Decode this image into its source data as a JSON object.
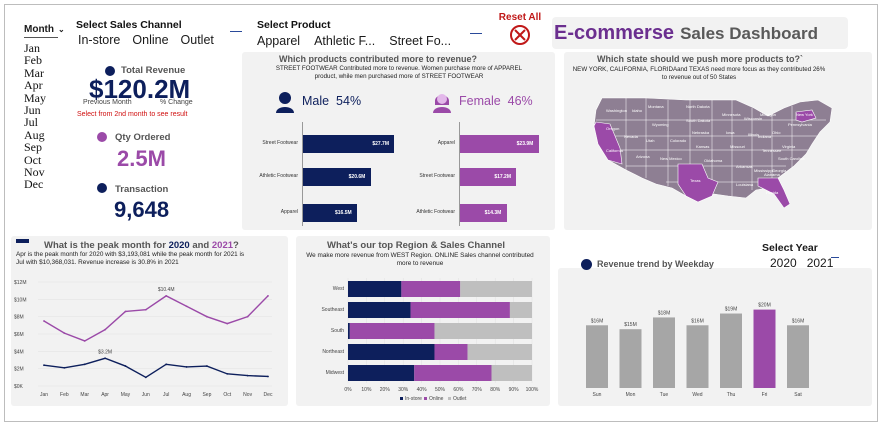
{
  "month_slicer": {
    "title": "Month",
    "months": [
      "Jan",
      "Feb",
      "Mar",
      "Apr",
      "May",
      "Jun",
      "Jul",
      "Aug",
      "Sep",
      "Oct",
      "Nov",
      "Dec"
    ]
  },
  "channel_slicer": {
    "title": "Select Sales Channel",
    "items": [
      "In-store",
      "Online",
      "Outlet"
    ]
  },
  "product_slicer": {
    "title": "Select Product",
    "items": [
      "Apparel",
      "Athletic F...",
      "Street Fo..."
    ]
  },
  "reset": {
    "label": "Reset All"
  },
  "title": {
    "main": "E-commerse",
    "sub": "Sales Dashboard"
  },
  "kpis": {
    "revenue_label": "Total Revenue",
    "revenue_value": "$120.2M",
    "prev_month": "Previous Month",
    "pct_change": "% Change",
    "note": "Select from 2nd month to see result",
    "qty_label": "Qty Ordered",
    "qty_value": "2.5M",
    "trans_label": "Transaction",
    "trans_value": "9,648"
  },
  "products": {
    "title": "Which products contributed more to revenue?",
    "subtitle_1": "STREET FOOTWEAR Contributed more to revenue. Women purchase more of APPAREL",
    "subtitle_2": "product, while men purchased more of STREET FOOTWEAR",
    "male_label": "Male",
    "male_pct": "54%",
    "female_label": "Female",
    "female_pct": "46%",
    "male_bars": [
      {
        "label": "Street Footwear",
        "value": 27.7,
        "text": "$27.7M"
      },
      {
        "label": "Athletic Footwear",
        "value": 20.6,
        "text": "$20.6M"
      },
      {
        "label": "Apparel",
        "value": 16.5,
        "text": "$16.5M"
      }
    ],
    "female_bars": [
      {
        "label": "Apparel",
        "value": 23.9,
        "text": "$23.9M"
      },
      {
        "label": "Street Footwear",
        "value": 17.2,
        "text": "$17.2M"
      },
      {
        "label": "Athletic Footwear",
        "value": 14.3,
        "text": "$14.3M"
      }
    ]
  },
  "states": {
    "title": "Which state should we push more products to?`",
    "subtitle_1": "NEW YORK, CALIFORNIA, FLORIDAand TEXAS need more focus as they contributed 26%",
    "subtitle_2": "to revenue out of 50 States"
  },
  "peak": {
    "title_a": "What is the peak month for ",
    "title_2020": "2020",
    "title_and": " and ",
    "title_2021": "2021",
    "title_q": "?",
    "sub_1": "Apr is the peak month for 2020 with $3,193,081 while  the peak month for 2021 is",
    "sub_2": "Jul with $10,368,031. Revenue increase is 30.8% in 2021"
  },
  "region": {
    "title": "What's our top Region & Sales Channel",
    "sub_1": "We make more revenue from WEST Region. ONLINE Sales channel contributed",
    "sub_2": "more to revenue"
  },
  "year_slicer": {
    "title": "Select Year",
    "items": [
      "2020",
      "2021"
    ]
  },
  "weekday": {
    "title": "Revenue trend by Weekday"
  },
  "chart_data": [
    {
      "type": "line",
      "x": [
        "Jan",
        "Feb",
        "Mar",
        "Apr",
        "May",
        "Jun",
        "Jul",
        "Aug",
        "Sep",
        "Oct",
        "Nov",
        "Dec"
      ],
      "ylim": [
        0,
        12
      ],
      "y_ticks": [
        "$0K",
        "$2M",
        "$4M",
        "$6M",
        "$8M",
        "$10M",
        "$12M"
      ],
      "series": [
        {
          "name": "2021",
          "color": "#9b4aa8",
          "values": [
            7.5,
            6.1,
            5.2,
            6.5,
            8.6,
            8.8,
            10.4,
            9.2,
            8.0,
            7.2,
            8.0,
            10.4
          ],
          "peak_label": "$10.4M",
          "peak_index": 6
        },
        {
          "name": "2020",
          "color": "#0d1f5c",
          "values": [
            2.4,
            2.1,
            2.5,
            3.2,
            2.3,
            1.0,
            2.5,
            2.2,
            2.3,
            1.4,
            1.2,
            1.1
          ],
          "peak_label": "$3.2M",
          "peak_index": 3
        }
      ]
    },
    {
      "type": "bar",
      "orientation": "horizontal",
      "stacked": true,
      "categories": [
        "West",
        "Southeast",
        "South",
        "Northeast",
        "Midwest"
      ],
      "x_ticks": [
        "0%",
        "10%",
        "20%",
        "30%",
        "40%",
        "50%",
        "60%",
        "70%",
        "80%",
        "90%",
        "100%"
      ],
      "series": [
        {
          "name": "In-store",
          "color": "#0d1f5c",
          "values": [
            29,
            34,
            1,
            47,
            36
          ]
        },
        {
          "name": "Online",
          "color": "#9b4aa8",
          "values": [
            32,
            54,
            46,
            18,
            42
          ]
        },
        {
          "name": "Outlet",
          "color": "#bfbfbf",
          "values": [
            39,
            12,
            53,
            35,
            22
          ]
        }
      ]
    },
    {
      "type": "bar",
      "categories": [
        "Sun",
        "Mon",
        "Tue",
        "Wed",
        "Thu",
        "Fri",
        "Sat"
      ],
      "values": [
        16,
        15,
        18,
        16,
        19,
        20,
        16
      ],
      "labels": [
        "$16M",
        "$15M",
        "$18M",
        "$16M",
        "$19M",
        "$20M",
        "$16M"
      ],
      "highlight_index": 5,
      "colors": {
        "normal": "#a6a6a6",
        "highlight": "#9b4aa8"
      }
    }
  ],
  "colors": {
    "navy": "#0d1f5c",
    "purple": "#9b4aa8",
    "title_purple": "#6b2f8f",
    "grey_bar": "#a6a6a6"
  }
}
